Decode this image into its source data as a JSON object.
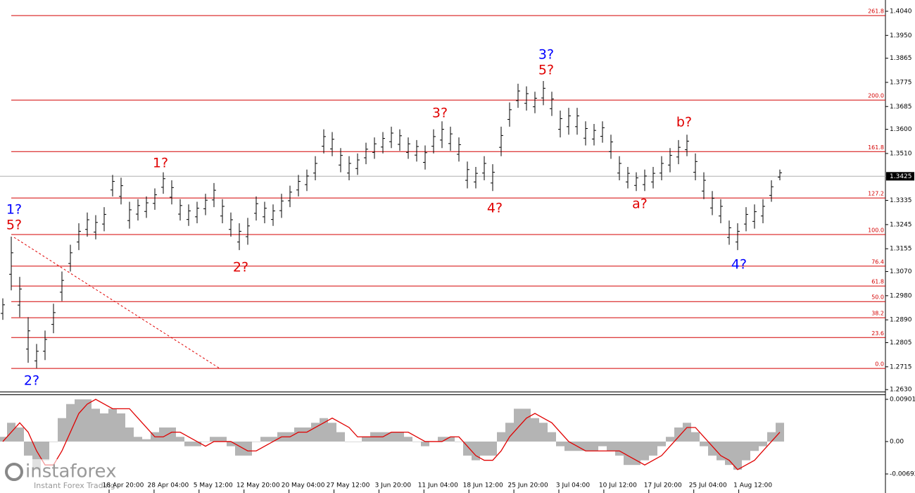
{
  "chart_data": [
    {
      "type": "ohlc",
      "bar_color": "#000000",
      "level_color": "#d40000",
      "grid": false,
      "ylim": [
        1.262,
        1.4082
      ],
      "yticks": [
        {
          "value": 1.404,
          "label": "1.4040"
        },
        {
          "value": 1.395,
          "label": "1.3950"
        },
        1.3865,
        1.3775,
        1.3685,
        {
          "value": 1.36,
          "label": "1.3600"
        },
        {
          "value": 1.351,
          "label": "1.3510"
        },
        1.3335,
        1.3245,
        1.3155,
        {
          "value": 1.307,
          "label": "1.3070"
        },
        {
          "value": 1.298,
          "label": "1.2980"
        },
        {
          "value": 1.289,
          "label": "1.2890"
        },
        1.2805,
        1.2715,
        {
          "value": 1.263,
          "label": "1.2630"
        }
      ],
      "current_price": 1.3425,
      "x_labels": [
        "18 Apr 20:00",
        "28 Apr 04:00",
        "5 May 12:00",
        "12 May 20:00",
        "20 May 04:00",
        "27 May 12:00",
        "3 Jun 20:00",
        "11 Jun 04:00",
        "18 Jun 12:00",
        "25 Jun 20:00",
        "3 Jul 04:00",
        "10 Jul 12:00",
        "17 Jul 20:00",
        "25 Jul 04:00",
        "1 Aug 12:00"
      ],
      "high": [
        1.297,
        1.32,
        1.305,
        1.29,
        1.28,
        1.285,
        1.295,
        1.307,
        1.317,
        1.325,
        1.329,
        1.328,
        1.331,
        1.343,
        1.342,
        1.333,
        1.334,
        1.335,
        1.338,
        1.344,
        1.341,
        1.334,
        1.332,
        1.333,
        1.336,
        1.34,
        1.334,
        1.329,
        1.325,
        1.327,
        1.335,
        1.333,
        1.332,
        1.336,
        1.339,
        1.343,
        1.345,
        1.35,
        1.36,
        1.359,
        1.353,
        1.35,
        1.351,
        1.355,
        1.357,
        1.359,
        1.361,
        1.36,
        1.357,
        1.356,
        1.354,
        1.36,
        1.363,
        1.361,
        1.357,
        1.348,
        1.346,
        1.35,
        1.347,
        1.361,
        1.37,
        1.377,
        1.376,
        1.374,
        1.378,
        1.374,
        1.367,
        1.368,
        1.368,
        1.363,
        1.362,
        1.363,
        1.358,
        1.35,
        1.346,
        1.344,
        1.345,
        1.346,
        1.35,
        1.353,
        1.356,
        1.358,
        1.351,
        1.344,
        1.337,
        1.334,
        1.326,
        1.325,
        1.331,
        1.332,
        1.334,
        1.341,
        1.345
      ],
      "low": [
        1.289,
        1.3,
        1.29,
        1.273,
        1.271,
        1.274,
        1.284,
        1.296,
        1.307,
        1.315,
        1.32,
        1.319,
        1.322,
        1.335,
        1.332,
        1.323,
        1.326,
        1.327,
        1.33,
        1.336,
        1.332,
        1.326,
        1.324,
        1.325,
        1.328,
        1.331,
        1.325,
        1.32,
        1.315,
        1.317,
        1.326,
        1.325,
        1.324,
        1.327,
        1.331,
        1.335,
        1.337,
        1.341,
        1.351,
        1.35,
        1.344,
        1.341,
        1.343,
        1.347,
        1.349,
        1.351,
        1.353,
        1.352,
        1.349,
        1.348,
        1.345,
        1.351,
        1.353,
        1.352,
        1.348,
        1.338,
        1.338,
        1.341,
        1.337,
        1.35,
        1.361,
        1.368,
        1.367,
        1.366,
        1.369,
        1.365,
        1.357,
        1.358,
        1.358,
        1.354,
        1.354,
        1.355,
        1.349,
        1.341,
        1.338,
        1.337,
        1.337,
        1.338,
        1.341,
        1.344,
        1.347,
        1.35,
        1.341,
        1.334,
        1.328,
        1.325,
        1.317,
        1.315,
        1.322,
        1.323,
        1.325,
        1.333,
        1.341
      ],
      "levels": [
        {
          "label": "261.8",
          "value": 1.4024
        },
        {
          "label": "200.0",
          "value": 1.3709
        },
        {
          "label": "161.8",
          "value": 1.3517
        },
        {
          "label": "127.2",
          "value": 1.3344
        },
        {
          "label": "100.0",
          "value": 1.3208
        },
        {
          "label": "76.4",
          "value": 1.309
        },
        {
          "label": "61.8",
          "value": 1.3016
        },
        {
          "label": "50.0",
          "value": 1.2958
        },
        {
          "label": "38.2",
          "value": 1.2898
        },
        {
          "label": "23.6",
          "value": 1.2824
        },
        {
          "label": "0.0",
          "value": 1.2709
        }
      ],
      "annotations": [
        {
          "text": "1?",
          "color": "#0000ff"
        },
        {
          "text": "5?",
          "color": "#e00000"
        },
        {
          "text": "2?",
          "color": "#0000ff"
        },
        {
          "text": "1?",
          "color": "#e00000"
        },
        {
          "text": "2?",
          "color": "#e00000"
        },
        {
          "text": "3?",
          "color": "#e00000"
        },
        {
          "text": "4?",
          "color": "#e00000"
        },
        {
          "text": "3?",
          "color": "#0000ff"
        },
        {
          "text": "5?",
          "color": "#e00000"
        },
        {
          "text": "a?",
          "color": "#e00000"
        },
        {
          "text": "b?",
          "color": "#e00000"
        },
        {
          "text": "4?",
          "color": "#0000ff"
        }
      ],
      "watermark": {
        "brand": "instaforex",
        "tagline": "Instant Forex Trading"
      }
    },
    {
      "type": "oscillator",
      "ylim": [
        -0.01053,
        0.01006
      ],
      "yticks": [
        0.00901,
        {
          "value": 0,
          "label": "0.00"
        },
        -0.00692
      ],
      "histogram": {
        "color": "#b4b4b4",
        "values": [
          0.001,
          0.004,
          0.003,
          -0.003,
          -0.006,
          -0.004,
          0.0,
          0.005,
          0.008,
          0.009,
          0.009,
          0.007,
          0.006,
          0.007,
          0.006,
          0.003,
          0.001,
          0.0005,
          0.002,
          0.003,
          0.003,
          0.001,
          -0.001,
          -0.001,
          0.0,
          0.001,
          0.001,
          -0.001,
          -0.003,
          -0.003,
          0.0,
          0.001,
          0.001,
          0.002,
          0.002,
          0.003,
          0.003,
          0.004,
          0.005,
          0.004,
          0.002,
          0.0,
          0.0,
          0.001,
          0.002,
          0.002,
          0.002,
          0.002,
          0.001,
          0.0,
          -0.001,
          0.0,
          0.001,
          0.001,
          0.0,
          -0.003,
          -0.004,
          -0.003,
          -0.003,
          0.002,
          0.004,
          0.007,
          0.007,
          0.005,
          0.004,
          0.002,
          -0.001,
          -0.002,
          -0.002,
          -0.002,
          -0.002,
          -0.001,
          -0.002,
          -0.003,
          -0.005,
          -0.005,
          -0.004,
          -0.003,
          -0.001,
          0.001,
          0.003,
          0.004,
          0.002,
          -0.001,
          -0.003,
          -0.004,
          -0.005,
          -0.006,
          -0.004,
          -0.002,
          -0.001,
          0.002,
          0.004
        ]
      },
      "signal": {
        "color": "#e00000",
        "values": [
          0.0,
          0.002,
          0.004,
          0.002,
          -0.002,
          -0.005,
          -0.005,
          -0.002,
          0.002,
          0.006,
          0.008,
          0.009,
          0.008,
          0.007,
          0.007,
          0.007,
          0.005,
          0.003,
          0.001,
          0.001,
          0.002,
          0.002,
          0.001,
          0.0,
          -0.001,
          0.0,
          0.0,
          0.0,
          -0.001,
          -0.002,
          -0.002,
          -0.001,
          0.0,
          0.001,
          0.001,
          0.002,
          0.002,
          0.003,
          0.004,
          0.005,
          0.004,
          0.003,
          0.001,
          0.001,
          0.001,
          0.001,
          0.002,
          0.002,
          0.002,
          0.001,
          0.0,
          0.0,
          0.0,
          0.001,
          0.001,
          -0.001,
          -0.003,
          -0.004,
          -0.004,
          -0.002,
          0.001,
          0.003,
          0.005,
          0.006,
          0.005,
          0.004,
          0.002,
          0.0,
          -0.001,
          -0.002,
          -0.002,
          -0.002,
          -0.002,
          -0.002,
          -0.003,
          -0.004,
          -0.005,
          -0.004,
          -0.003,
          -0.001,
          0.001,
          0.003,
          0.003,
          0.001,
          -0.001,
          -0.003,
          -0.004,
          -0.006,
          -0.005,
          -0.004,
          -0.002,
          0.0,
          0.002
        ]
      }
    }
  ]
}
